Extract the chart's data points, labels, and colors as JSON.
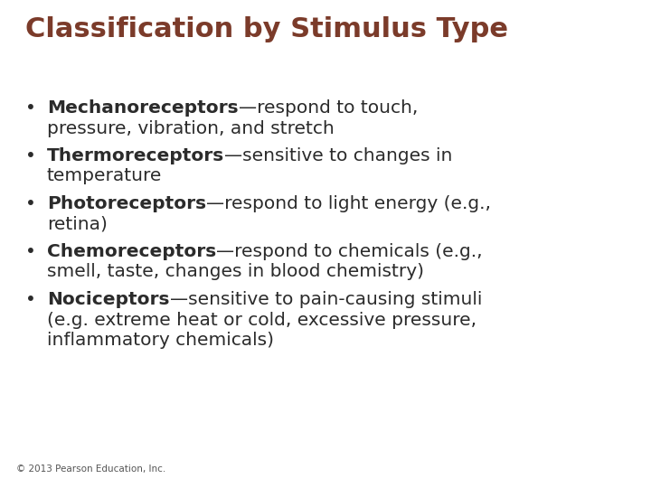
{
  "title": "Classification by Stimulus Type",
  "title_color": "#7B3B2A",
  "title_fontsize": 22,
  "background_color": "#FFFFFF",
  "text_color": "#2B2B2B",
  "bullet_fontsize": 14.5,
  "footer": "© 2013 Pearson Education, Inc.",
  "footer_fontsize": 7.5,
  "footer_color": "#555555",
  "bullets": [
    {
      "bold_part": "Mechanoreceptors",
      "normal_part": "—respond to touch,\npressure, vibration, and stretch"
    },
    {
      "bold_part": "Thermoreceptors",
      "normal_part": "—sensitive to changes in\ntemperature"
    },
    {
      "bold_part": "Photoreceptors",
      "normal_part": "—respond to light energy (e.g.,\nretina)"
    },
    {
      "bold_part": "Chemoreceptors",
      "normal_part": "—respond to chemicals (e.g.,\nsmell, taste, changes in blood chemistry)"
    },
    {
      "bold_part": "Nociceptors",
      "normal_part": "—sensitive to pain-causing stimuli\n(e.g. extreme heat or cold, excessive pressure,\ninflammatory chemicals)"
    }
  ]
}
